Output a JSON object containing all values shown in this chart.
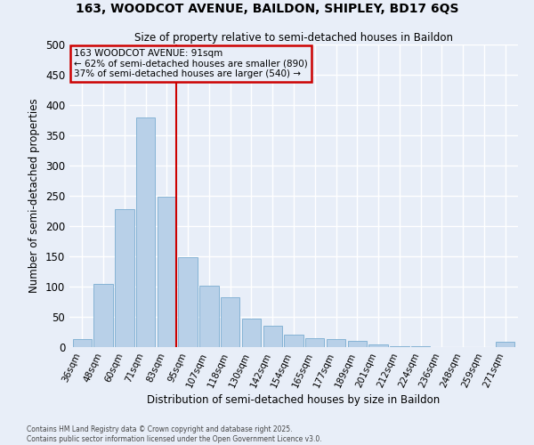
{
  "title1": "163, WOODCOT AVENUE, BAILDON, SHIPLEY, BD17 6QS",
  "title2": "Size of property relative to semi-detached houses in Baildon",
  "xlabel": "Distribution of semi-detached houses by size in Baildon",
  "ylabel": "Number of semi-detached properties",
  "categories": [
    "36sqm",
    "48sqm",
    "60sqm",
    "71sqm",
    "83sqm",
    "95sqm",
    "107sqm",
    "118sqm",
    "130sqm",
    "142sqm",
    "154sqm",
    "165sqm",
    "177sqm",
    "189sqm",
    "201sqm",
    "212sqm",
    "224sqm",
    "236sqm",
    "248sqm",
    "259sqm",
    "271sqm"
  ],
  "values": [
    13,
    105,
    228,
    380,
    248,
    148,
    101,
    83,
    47,
    35,
    20,
    15,
    13,
    11,
    4,
    2,
    1,
    0,
    0,
    0,
    9
  ],
  "bar_color": "#b8d0e8",
  "bar_edge_color": "#7aacd0",
  "ref_line_label": "163 WOODCOT AVENUE: 91sqm",
  "annotation_smaller": "← 62% of semi-detached houses are smaller (890)",
  "annotation_larger": "37% of semi-detached houses are larger (540) →",
  "box_color": "#cc0000",
  "ylim": [
    0,
    500
  ],
  "yticks": [
    0,
    50,
    100,
    150,
    200,
    250,
    300,
    350,
    400,
    450,
    500
  ],
  "footer1": "Contains HM Land Registry data © Crown copyright and database right 2025.",
  "footer2": "Contains public sector information licensed under the Open Government Licence v3.0.",
  "bg_color": "#e8eef8",
  "grid_color": "#ffffff"
}
